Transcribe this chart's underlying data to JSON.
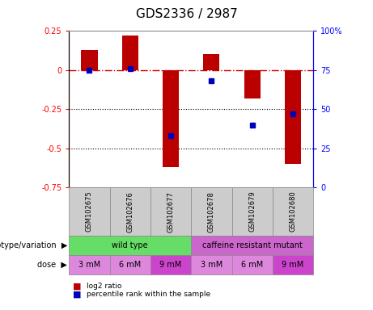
{
  "title": "GDS2336 / 2987",
  "samples": [
    "GSM102675",
    "GSM102676",
    "GSM102677",
    "GSM102678",
    "GSM102679",
    "GSM102680"
  ],
  "log2_ratios": [
    0.13,
    0.22,
    -0.62,
    0.1,
    -0.18,
    -0.6
  ],
  "percentile_ranks": [
    75,
    76,
    33,
    68,
    40,
    47
  ],
  "ylim_left": [
    -0.75,
    0.25
  ],
  "ylim_right": [
    0,
    100
  ],
  "yticks_left": [
    -0.75,
    -0.5,
    -0.25,
    0,
    0.25
  ],
  "yticks_right": [
    0,
    25,
    50,
    75,
    100
  ],
  "ytick_labels_left": [
    "-0.75",
    "-0.5",
    "-0.25",
    "0",
    "0.25"
  ],
  "ytick_labels_right": [
    "0",
    "25",
    "50",
    "75",
    "100%"
  ],
  "bar_color": "#bb0000",
  "dot_color": "#0000bb",
  "dashed_line_color": "#cc0000",
  "dotted_line_color": "#000000",
  "genotype_groups": [
    {
      "label": "wild type",
      "start": 0,
      "end": 3,
      "color": "#66dd66"
    },
    {
      "label": "caffeine resistant mutant",
      "start": 3,
      "end": 6,
      "color": "#cc66cc"
    }
  ],
  "doses": [
    "3 mM",
    "6 mM",
    "9 mM",
    "3 mM",
    "6 mM",
    "9 mM"
  ],
  "dose_bg_colors": [
    "#dd88dd",
    "#dd88dd",
    "#cc44cc",
    "#dd88dd",
    "#dd88dd",
    "#cc44cc"
  ],
  "legend_items": [
    "log2 ratio",
    "percentile rank within the sample"
  ],
  "genotype_label": "genotype/variation",
  "dose_label": "dose",
  "sample_box_color": "#cccccc",
  "title_fontsize": 11,
  "tick_fontsize": 7,
  "label_fontsize": 7,
  "sample_fontsize": 6,
  "row_label_fontsize": 7
}
